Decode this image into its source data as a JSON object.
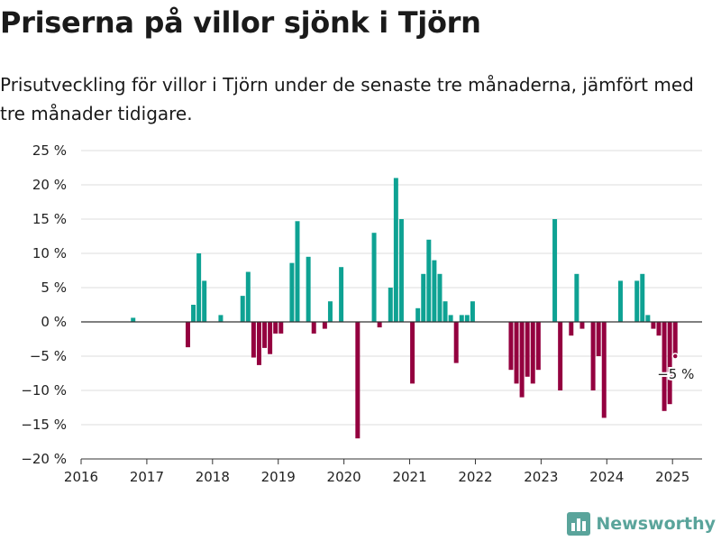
{
  "title": "Priserna på villor sjönk i Tjörn",
  "subtitle": "Prisutveckling för villor i Tjörn under de senaste tre månaderna, jämfört med tre månader tidigare.",
  "brand": {
    "name": "Newsworthy"
  },
  "colors": {
    "positive": "#0ea293",
    "negative": "#94003f",
    "grid": "#dddddd",
    "zero": "#333333",
    "brand": "#5aa49b"
  },
  "chart_data": {
    "type": "bar",
    "title": "Priserna på villor sjönk i Tjörn",
    "xlabel": "",
    "ylabel": "",
    "ylim": [
      -20,
      25
    ],
    "xlim": [
      2016.0,
      2025.45
    ],
    "grid": true,
    "y_ticks": [
      25,
      20,
      15,
      10,
      5,
      0,
      -5,
      -10,
      -15,
      -20
    ],
    "y_tick_labels": [
      "25 %",
      "20 %",
      "15 %",
      "10 %",
      "5 %",
      "0 %",
      "−5 %",
      "−10 %",
      "−15 %",
      "−20 %"
    ],
    "x_ticks": [
      "2016",
      "2017",
      "2018",
      "2019",
      "2020",
      "2021",
      "2022",
      "2023",
      "2024",
      "2025"
    ],
    "annotation": {
      "text": "−5 %",
      "x": "2025-01",
      "y": -5
    },
    "points": [
      {
        "x": "2016-10",
        "y": 0.6
      },
      {
        "x": "2017-08",
        "y": -3.7
      },
      {
        "x": "2017-09",
        "y": 2.5
      },
      {
        "x": "2017-10",
        "y": 10
      },
      {
        "x": "2017-11",
        "y": 6
      },
      {
        "x": "2018-02",
        "y": 1
      },
      {
        "x": "2018-06",
        "y": 3.8
      },
      {
        "x": "2018-07",
        "y": 7.3
      },
      {
        "x": "2018-08",
        "y": -5.2
      },
      {
        "x": "2018-09",
        "y": -6.3
      },
      {
        "x": "2018-10",
        "y": -3.8
      },
      {
        "x": "2018-11",
        "y": -4.7
      },
      {
        "x": "2018-12",
        "y": -1.7
      },
      {
        "x": "2019-01",
        "y": -1.7
      },
      {
        "x": "2019-03",
        "y": 8.6
      },
      {
        "x": "2019-04",
        "y": 14.7
      },
      {
        "x": "2019-06",
        "y": 9.5
      },
      {
        "x": "2019-07",
        "y": -1.7
      },
      {
        "x": "2019-09",
        "y": -1
      },
      {
        "x": "2019-10",
        "y": 3
      },
      {
        "x": "2019-12",
        "y": 8
      },
      {
        "x": "2020-03",
        "y": -17
      },
      {
        "x": "2020-06",
        "y": 13
      },
      {
        "x": "2020-07",
        "y": -0.8
      },
      {
        "x": "2020-09",
        "y": 5
      },
      {
        "x": "2020-10",
        "y": 21
      },
      {
        "x": "2020-11",
        "y": 15
      },
      {
        "x": "2021-01",
        "y": -9
      },
      {
        "x": "2021-02",
        "y": 2
      },
      {
        "x": "2021-03",
        "y": 7
      },
      {
        "x": "2021-04",
        "y": 12
      },
      {
        "x": "2021-05",
        "y": 9
      },
      {
        "x": "2021-06",
        "y": 7
      },
      {
        "x": "2021-07",
        "y": 3
      },
      {
        "x": "2021-08",
        "y": 1
      },
      {
        "x": "2021-09",
        "y": -6
      },
      {
        "x": "2021-10",
        "y": 1
      },
      {
        "x": "2021-11",
        "y": 1
      },
      {
        "x": "2021-12",
        "y": 3
      },
      {
        "x": "2022-07",
        "y": -7
      },
      {
        "x": "2022-08",
        "y": -9
      },
      {
        "x": "2022-09",
        "y": -11
      },
      {
        "x": "2022-10",
        "y": -8
      },
      {
        "x": "2022-11",
        "y": -9
      },
      {
        "x": "2022-12",
        "y": -7
      },
      {
        "x": "2023-03",
        "y": 15
      },
      {
        "x": "2023-04",
        "y": -10
      },
      {
        "x": "2023-06",
        "y": -2
      },
      {
        "x": "2023-07",
        "y": 7
      },
      {
        "x": "2023-08",
        "y": -1
      },
      {
        "x": "2023-10",
        "y": -10
      },
      {
        "x": "2023-11",
        "y": -5
      },
      {
        "x": "2023-12",
        "y": -14
      },
      {
        "x": "2024-03",
        "y": 6
      },
      {
        "x": "2024-06",
        "y": 6
      },
      {
        "x": "2024-07",
        "y": 7
      },
      {
        "x": "2024-08",
        "y": 1
      },
      {
        "x": "2024-09",
        "y": -1
      },
      {
        "x": "2024-10",
        "y": -2
      },
      {
        "x": "2024-11",
        "y": -13
      },
      {
        "x": "2024-12",
        "y": -12
      },
      {
        "x": "2025-01",
        "y": -5
      }
    ]
  }
}
